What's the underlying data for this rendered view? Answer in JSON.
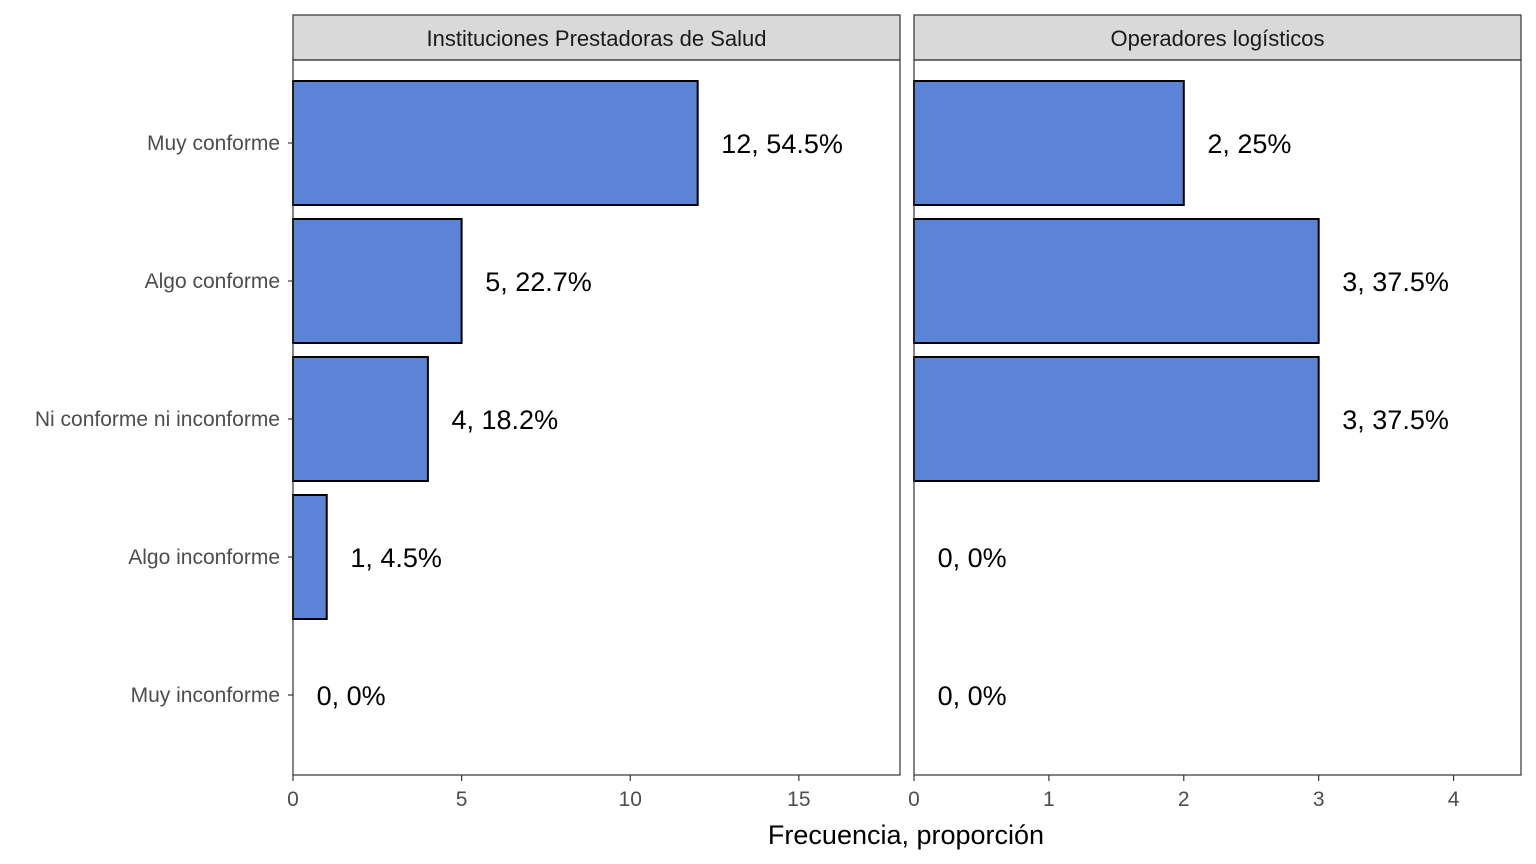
{
  "chart_data": {
    "type": "bar",
    "orientation": "horizontal",
    "categories": [
      "Muy conforme",
      "Algo conforme",
      "Ni conforme ni inconforme",
      "Algo inconforme",
      "Muy inconforme"
    ],
    "xlabel": "Frecuencia, proporción",
    "bar_color": "#5b84d6",
    "bar_border_color": "#000000",
    "strip_color": "#d9d9d9",
    "grid": false,
    "panels": [
      {
        "title": "Instituciones Prestadoras de Salud",
        "values": [
          12,
          5,
          4,
          1,
          0
        ],
        "labels": [
          "12, 54.5%",
          "5, 22.7%",
          "4, 18.2%",
          "1, 4.5%",
          "0, 0%"
        ],
        "xlim": [
          0,
          18
        ],
        "xticks": [
          0,
          5,
          10,
          15
        ]
      },
      {
        "title": "Operadores logísticos",
        "values": [
          2,
          3,
          3,
          0,
          0
        ],
        "labels": [
          "2, 25%",
          "3, 37.5%",
          "3, 37.5%",
          "0, 0%",
          "0, 0%"
        ],
        "xlim": [
          0,
          4.5
        ],
        "xticks": [
          0,
          1,
          2,
          3,
          4
        ]
      }
    ]
  }
}
